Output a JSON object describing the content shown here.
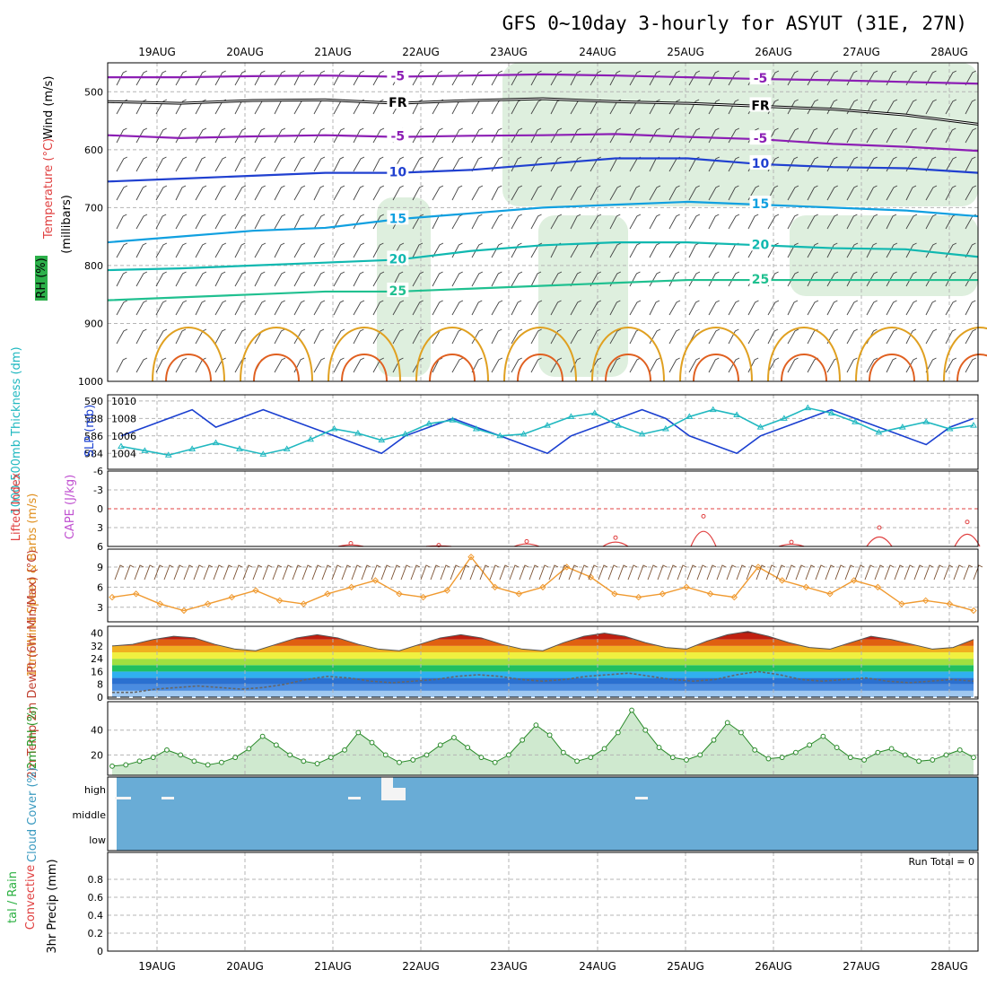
{
  "title": "GFS 0~10day 3-hourly for ASYUT (31E, 27N)",
  "dates": [
    "19AUG",
    "20AUG",
    "21AUG",
    "22AUG",
    "23AUG",
    "24AUG",
    "25AUG",
    "26AUG",
    "27AUG",
    "28AUG"
  ],
  "colors": {
    "grid": "#b4b4b4",
    "purple": "#8c1fb4",
    "blue": "#2040d0",
    "lightblue": "#10a0e0",
    "teal": "#10b8b0",
    "green": "#20c090",
    "orange": "#e0a020",
    "darkorange": "#e06020",
    "magenta": "#e0208c",
    "rhfill": "#d8ecd8",
    "slp": "#1a3fd0",
    "thick": "#20b8c0",
    "cape": "#e04040",
    "wind": "#f09a30",
    "cloud": "#69acd6"
  },
  "chart_data": [
    {
      "type": "line",
      "panel": "upper-air",
      "ylabel_parts": [
        "RH (%)",
        "Temperature (°C)",
        "Wind (m/s)",
        "(millibars)"
      ],
      "yticks": [
        "500",
        "600",
        "700",
        "800",
        "900",
        "1000"
      ],
      "ylim": [
        1000,
        450
      ],
      "contours": [
        {
          "label": "-5",
          "pressure": [
            475,
            475,
            473,
            472,
            474,
            472,
            470,
            472,
            475,
            478,
            480,
            483,
            486
          ],
          "color": "purple"
        },
        {
          "label": "FR",
          "pressure": [
            517,
            520,
            515,
            514,
            520,
            515,
            512,
            517,
            520,
            525,
            530,
            540,
            556
          ],
          "color": "black"
        },
        {
          "label": "-5",
          "pressure": [
            575,
            580,
            577,
            575,
            578,
            576,
            575,
            573,
            578,
            582,
            590,
            595,
            602
          ],
          "color": "purple"
        },
        {
          "label": "10",
          "pressure": [
            655,
            650,
            645,
            640,
            640,
            635,
            625,
            615,
            615,
            625,
            630,
            632,
            640
          ],
          "color": "blue"
        },
        {
          "label": "15",
          "pressure": [
            760,
            750,
            740,
            735,
            720,
            710,
            700,
            695,
            690,
            695,
            700,
            705,
            715
          ],
          "color": "lightblue"
        },
        {
          "label": "20",
          "pressure": [
            808,
            805,
            800,
            795,
            790,
            775,
            765,
            760,
            760,
            765,
            770,
            772,
            785
          ],
          "color": "teal"
        },
        {
          "label": "25",
          "pressure": [
            860,
            855,
            850,
            845,
            845,
            840,
            835,
            830,
            825,
            825,
            825,
            825,
            825
          ],
          "color": "green"
        }
      ]
    },
    {
      "type": "line",
      "panel": "slp-thickness",
      "ylabel_left": "1000-500mb Thickness (dm)",
      "ylabel_right": "SLP (mb)",
      "yticks_left": [
        "584",
        "586",
        "588",
        "590"
      ],
      "yticks_right": [
        "1004",
        "1006",
        "1008",
        "1010"
      ],
      "series": [
        {
          "name": "SLP (mb)",
          "y_ax": [
            1006,
            1007,
            1008,
            1009,
            1007,
            1008,
            1009,
            1008,
            1007,
            1006,
            1005,
            1004,
            1006,
            1007,
            1008,
            1007,
            1006,
            1005,
            1004,
            1006,
            1007,
            1008,
            1009,
            1008,
            1006,
            1005,
            1004,
            1006,
            1007,
            1008,
            1009,
            1008,
            1007,
            1006,
            1005,
            1007,
            1008
          ]
        },
        {
          "name": "1000-500mb Thickness (dm)",
          "y_ax": [
            584.8,
            584.3,
            583.8,
            584.5,
            585.2,
            584.5,
            583.9,
            584.5,
            585.6,
            586.8,
            586.3,
            585.5,
            586.2,
            587.4,
            587.8,
            586.8,
            586.0,
            586.2,
            587.2,
            588.2,
            588.6,
            587.2,
            586.2,
            586.8,
            588.2,
            589.0,
            588.4,
            587.0,
            588.0,
            589.2,
            588.6,
            587.6,
            586.4,
            587.0,
            587.6,
            586.8,
            587.2
          ]
        }
      ]
    },
    {
      "type": "line",
      "panel": "cape-li",
      "ylabel_left": "Lifted Index",
      "ylabel_right": "CAPE (J/kg)",
      "yticks": [
        "-6",
        "-3",
        "0",
        "3",
        "6"
      ],
      "series": [
        {
          "name": "Lifted Index",
          "x_ax": [
            "21AUG",
            "22AUG",
            "23AUG",
            "24AUG",
            "25AUG",
            "26AUG",
            "27AUG",
            "28AUG"
          ],
          "y_ax": [
            5.5,
            5.8,
            5.2,
            4.6,
            1.2,
            5.3,
            3.0,
            2.1
          ]
        }
      ]
    },
    {
      "type": "line",
      "panel": "10m-wind",
      "ylabel": "10m Wind Speed & Barbs (m/s)",
      "yticks": [
        "3",
        "6",
        "9"
      ],
      "series": [
        {
          "name": "10m Wind Speed",
          "y_ax": [
            4.5,
            5.0,
            3.5,
            2.5,
            3.5,
            4.5,
            5.5,
            4.0,
            3.5,
            5.0,
            6.0,
            7.0,
            5.0,
            4.5,
            5.5,
            10.5,
            6.0,
            5.0,
            6.0,
            9.0,
            7.5,
            5.0,
            4.5,
            5.0,
            6.0,
            5.0,
            4.5,
            9.0,
            7.0,
            6.0,
            5.0,
            7.0,
            6.0,
            3.5,
            4.0,
            3.5,
            2.5
          ]
        }
      ]
    },
    {
      "type": "area",
      "panel": "2m-temp",
      "ylabel": "2m Temp 2m DewPt (6hr Min/Max) (°C)",
      "yticks": [
        "0",
        "8",
        "16",
        "24",
        "32",
        "40"
      ],
      "series": [
        {
          "name": "2m Temp",
          "y_ax": [
            32,
            33,
            36,
            38,
            37,
            33,
            30,
            29,
            33,
            37,
            39,
            37,
            33,
            30,
            29,
            33,
            37,
            39,
            37,
            33,
            30,
            29,
            34,
            38,
            40,
            38,
            34,
            31,
            30,
            35,
            39,
            41,
            38,
            34,
            31,
            30,
            34,
            38,
            36,
            33,
            30,
            31,
            36
          ]
        },
        {
          "name": "2m DewPt",
          "y_ax": [
            3,
            3,
            5,
            6,
            7,
            6,
            5,
            6,
            8,
            11,
            13,
            12,
            10,
            9,
            10,
            11,
            13,
            14,
            13,
            11,
            10,
            11,
            13,
            14,
            15,
            13,
            11,
            10,
            11,
            14,
            16,
            14,
            11,
            10,
            11,
            12,
            10,
            9,
            10,
            11,
            10
          ]
        }
      ]
    },
    {
      "type": "area",
      "panel": "2m-rh",
      "ylabel": "2m RH (%)",
      "yticks": [
        "20",
        "40"
      ],
      "series": [
        {
          "name": "2m RH",
          "y_ax": [
            11,
            12,
            15,
            18,
            24,
            20,
            15,
            12,
            14,
            18,
            25,
            35,
            28,
            20,
            15,
            13,
            18,
            24,
            38,
            30,
            20,
            14,
            16,
            20,
            28,
            34,
            26,
            18,
            14,
            20,
            32,
            44,
            36,
            22,
            15,
            18,
            25,
            38,
            56,
            40,
            26,
            18,
            16,
            20,
            32,
            46,
            38,
            24,
            17,
            18,
            22,
            28,
            35,
            26,
            18,
            16,
            22,
            25,
            20,
            15,
            16,
            20,
            24,
            18
          ]
        }
      ]
    },
    {
      "type": "heatmap",
      "panel": "cloud-cover",
      "ylabel": "Cloud Cover (%)",
      "yticks": [
        "high",
        "middle",
        "low"
      ],
      "levels": [
        "high",
        "middle",
        "low"
      ]
    },
    {
      "type": "bar",
      "panel": "precip",
      "ylabel_parts": [
        "tal / Rain",
        "Convective",
        "3hr Precip (mm)"
      ],
      "yticks": [
        "0",
        "0.2",
        "0.4",
        "0.6",
        "0.8"
      ],
      "annotation": "Run Total = 0",
      "values": []
    }
  ]
}
